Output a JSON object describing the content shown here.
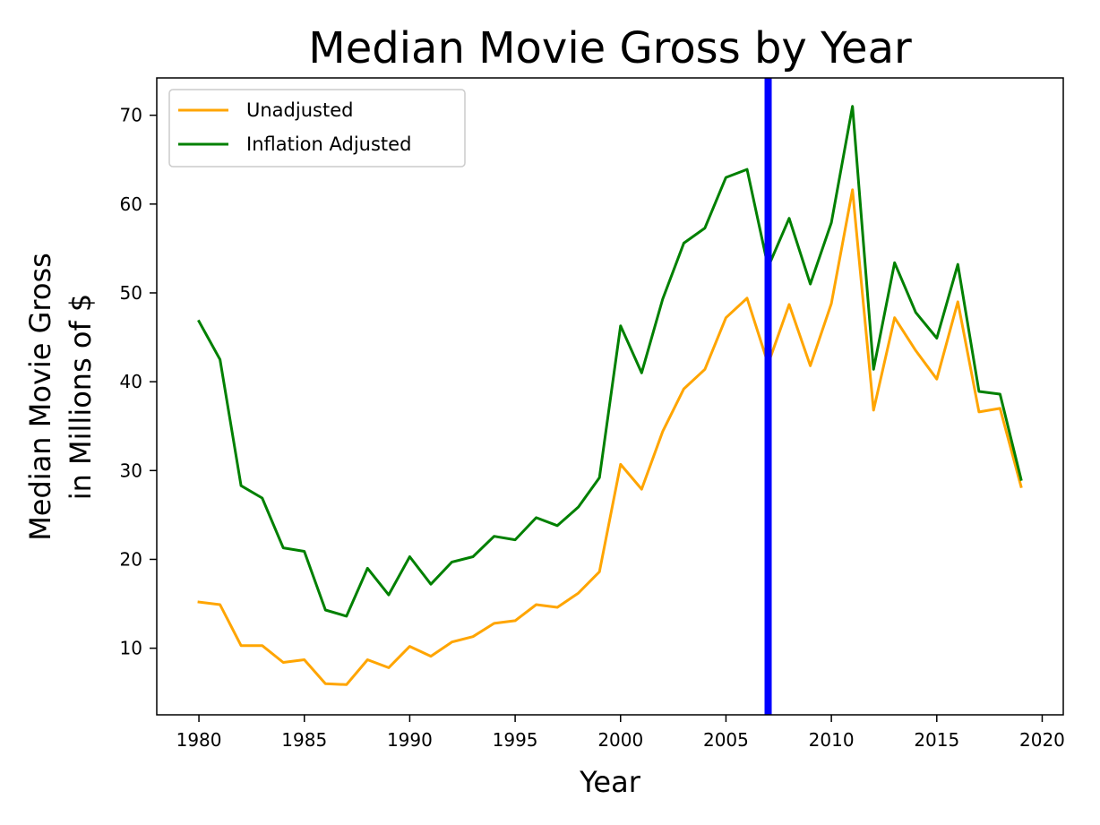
{
  "chart_data": {
    "type": "line",
    "title": "Median Movie Gross by Year",
    "xlabel": "Year",
    "ylabel_lines": [
      "Median Movie Gross",
      "in Millions of $"
    ],
    "xlim": [
      1978,
      2021
    ],
    "ylim": [
      2.5,
      74.2
    ],
    "xticks": [
      1980,
      1985,
      1990,
      1995,
      2000,
      2005,
      2010,
      2015,
      2020
    ],
    "yticks": [
      10,
      20,
      30,
      40,
      50,
      60,
      70
    ],
    "grid": false,
    "legend_position": "upper-left",
    "x": [
      1980,
      1981,
      1982,
      1983,
      1984,
      1985,
      1986,
      1987,
      1988,
      1989,
      1990,
      1991,
      1992,
      1993,
      1994,
      1995,
      1996,
      1997,
      1998,
      1999,
      2000,
      2001,
      2002,
      2003,
      2004,
      2005,
      2006,
      2007,
      2008,
      2009,
      2010,
      2011,
      2012,
      2013,
      2014,
      2015,
      2016,
      2017,
      2018,
      2019
    ],
    "series": [
      {
        "name": "Unadjusted",
        "color": "#ffa500",
        "values": [
          15.2,
          14.9,
          10.3,
          10.3,
          8.4,
          8.7,
          6.0,
          5.9,
          8.7,
          7.8,
          10.2,
          9.1,
          10.7,
          11.3,
          12.8,
          13.1,
          14.9,
          14.6,
          16.2,
          18.6,
          30.7,
          27.9,
          34.4,
          39.2,
          41.4,
          47.2,
          49.4,
          42.0,
          48.7,
          41.8,
          48.8,
          61.6,
          36.8,
          47.2,
          43.5,
          40.3,
          49.0,
          36.6,
          37.0,
          28.2
        ]
      },
      {
        "name": "Inflation Adjusted",
        "color": "#008000",
        "values": [
          46.8,
          42.5,
          28.3,
          26.9,
          21.3,
          20.9,
          14.3,
          13.6,
          19.0,
          16.0,
          20.3,
          17.2,
          19.7,
          20.3,
          22.6,
          22.2,
          24.7,
          23.8,
          25.9,
          29.2,
          46.3,
          41.0,
          49.3,
          55.6,
          57.3,
          63.0,
          63.9,
          52.9,
          58.4,
          51.0,
          57.9,
          71.0,
          41.4,
          53.4,
          47.8,
          44.9,
          53.2,
          38.9,
          38.6,
          29.0
        ]
      }
    ],
    "vline": {
      "x": 2007,
      "color": "#0000ff"
    }
  }
}
